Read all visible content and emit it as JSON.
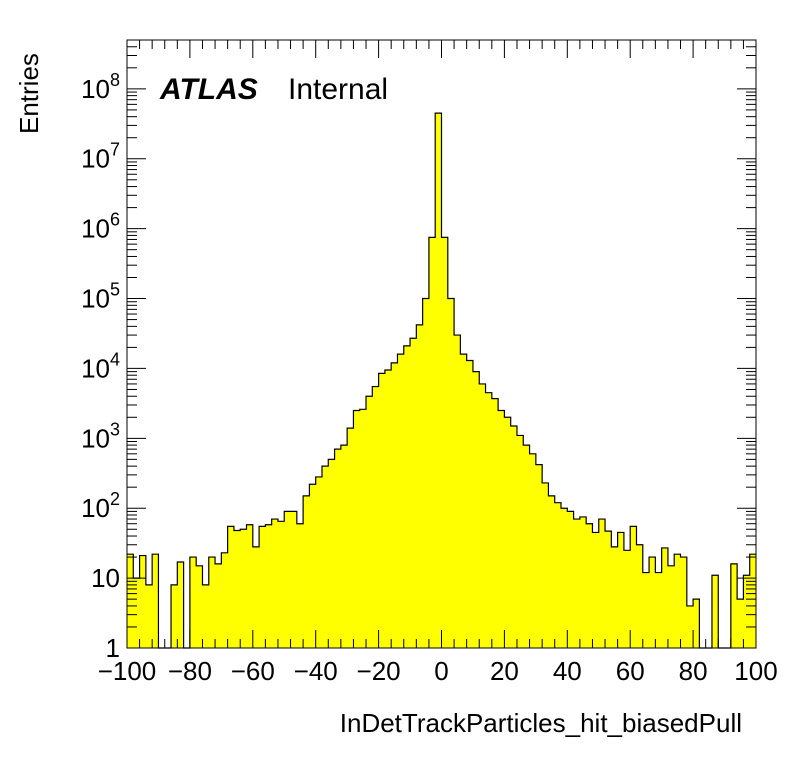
{
  "chart_data": {
    "type": "bar",
    "style": "step-histogram",
    "fill_color": "#ffff00",
    "line_color": "#000000",
    "title": "",
    "xlabel": "InDetTrackParticles_hit_biasedPull",
    "ylabel": "Entries",
    "xlim": [
      -100,
      100
    ],
    "ylim": [
      1,
      500000000
    ],
    "yscale": "log",
    "grid": false,
    "x_ticks": [
      "−100",
      "−80",
      "−60",
      "−40",
      "−20",
      "0",
      "20",
      "40",
      "60",
      "80",
      "100"
    ],
    "y_ticks": [
      {
        "base": "1",
        "exp": ""
      },
      {
        "base": "10",
        "exp": ""
      },
      {
        "base": "10",
        "exp": "2"
      },
      {
        "base": "10",
        "exp": "3"
      },
      {
        "base": "10",
        "exp": "4"
      },
      {
        "base": "10",
        "exp": "5"
      },
      {
        "base": "10",
        "exp": "6"
      },
      {
        "base": "10",
        "exp": "7"
      },
      {
        "base": "10",
        "exp": "8"
      }
    ],
    "bin_width": 2,
    "bin_edges_start": -100,
    "values": [
      22,
      10,
      21,
      8,
      22,
      0,
      0,
      8,
      17,
      0,
      20,
      15,
      8,
      20,
      16,
      23,
      55,
      48,
      50,
      58,
      28,
      55,
      58,
      70,
      65,
      90,
      90,
      60,
      150,
      220,
      280,
      400,
      500,
      700,
      800,
      1400,
      2500,
      2600,
      4000,
      5500,
      8500,
      9500,
      12000,
      16000,
      21000,
      27000,
      42000,
      100000,
      750000,
      45000000,
      750000,
      100000,
      30000,
      16000,
      13000,
      9000,
      6000,
      4500,
      3700,
      2500,
      2000,
      1500,
      1100,
      800,
      600,
      420,
      230,
      150,
      120,
      100,
      90,
      70,
      75,
      60,
      45,
      70,
      47,
      28,
      45,
      25,
      55,
      30,
      12,
      20,
      12,
      27,
      15,
      22,
      20,
      4,
      5,
      0,
      0,
      11,
      1,
      0,
      16,
      5,
      11,
      22
    ]
  },
  "labels": {
    "atlas": "ATLAS",
    "internal": "Internal"
  }
}
